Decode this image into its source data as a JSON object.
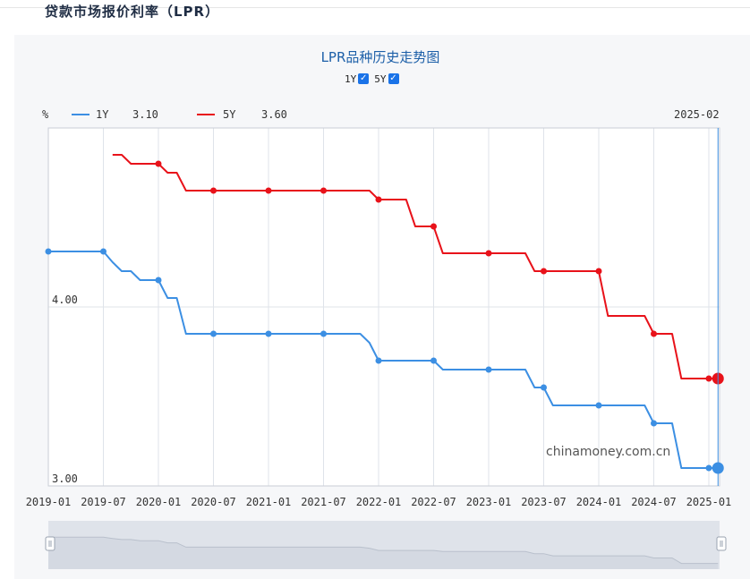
{
  "page": {
    "title": "贷款市场报价利率（LPR）"
  },
  "controls": {
    "toggles": [
      {
        "label": "1Y",
        "checked": true,
        "mark": "✓"
      },
      {
        "label": "5Y",
        "checked": true,
        "mark": "✓"
      }
    ]
  },
  "watermark": "chinamoney.com.cn",
  "colors": {
    "1Y": "#3c8fe3",
    "5Y": "#e8121a",
    "grid": "#dfe3ea",
    "navigator": "#d4d9e2"
  },
  "chart_data": {
    "type": "line",
    "title": "LPR品种历史走势图",
    "unit": "%",
    "cursor_label": "2025-02",
    "x_ticks": [
      "2019-01",
      "2019-07",
      "2020-01",
      "2020-07",
      "2021-01",
      "2021-07",
      "2022-01",
      "2022-07",
      "2023-01",
      "2023-07",
      "2024-01",
      "2024-07",
      "2025-01"
    ],
    "y_ticks": [
      {
        "value": 3.0,
        "label": "3.00"
      },
      {
        "value": 4.0,
        "label": "4.00"
      }
    ],
    "ylim": [
      3.0,
      5.0
    ],
    "legend_position": "top-left",
    "series": [
      {
        "name": "1Y",
        "current": "3.10",
        "points": [
          [
            "2019-01",
            4.31
          ],
          [
            "2019-02",
            4.31
          ],
          [
            "2019-03",
            4.31
          ],
          [
            "2019-04",
            4.31
          ],
          [
            "2019-05",
            4.31
          ],
          [
            "2019-06",
            4.31
          ],
          [
            "2019-07",
            4.31
          ],
          [
            "2019-08",
            4.25
          ],
          [
            "2019-09",
            4.2
          ],
          [
            "2019-10",
            4.2
          ],
          [
            "2019-11",
            4.15
          ],
          [
            "2019-12",
            4.15
          ],
          [
            "2020-01",
            4.15
          ],
          [
            "2020-02",
            4.05
          ],
          [
            "2020-03",
            4.05
          ],
          [
            "2020-04",
            3.85
          ],
          [
            "2020-05",
            3.85
          ],
          [
            "2020-06",
            3.85
          ],
          [
            "2020-07",
            3.85
          ],
          [
            "2020-08",
            3.85
          ],
          [
            "2020-09",
            3.85
          ],
          [
            "2020-10",
            3.85
          ],
          [
            "2020-11",
            3.85
          ],
          [
            "2020-12",
            3.85
          ],
          [
            "2021-01",
            3.85
          ],
          [
            "2021-02",
            3.85
          ],
          [
            "2021-03",
            3.85
          ],
          [
            "2021-04",
            3.85
          ],
          [
            "2021-05",
            3.85
          ],
          [
            "2021-06",
            3.85
          ],
          [
            "2021-07",
            3.85
          ],
          [
            "2021-08",
            3.85
          ],
          [
            "2021-09",
            3.85
          ],
          [
            "2021-10",
            3.85
          ],
          [
            "2021-11",
            3.85
          ],
          [
            "2021-12",
            3.8
          ],
          [
            "2022-01",
            3.7
          ],
          [
            "2022-02",
            3.7
          ],
          [
            "2022-03",
            3.7
          ],
          [
            "2022-04",
            3.7
          ],
          [
            "2022-05",
            3.7
          ],
          [
            "2022-06",
            3.7
          ],
          [
            "2022-07",
            3.7
          ],
          [
            "2022-08",
            3.65
          ],
          [
            "2022-09",
            3.65
          ],
          [
            "2022-10",
            3.65
          ],
          [
            "2022-11",
            3.65
          ],
          [
            "2022-12",
            3.65
          ],
          [
            "2023-01",
            3.65
          ],
          [
            "2023-02",
            3.65
          ],
          [
            "2023-03",
            3.65
          ],
          [
            "2023-04",
            3.65
          ],
          [
            "2023-05",
            3.65
          ],
          [
            "2023-06",
            3.55
          ],
          [
            "2023-07",
            3.55
          ],
          [
            "2023-08",
            3.45
          ],
          [
            "2023-09",
            3.45
          ],
          [
            "2023-10",
            3.45
          ],
          [
            "2023-11",
            3.45
          ],
          [
            "2023-12",
            3.45
          ],
          [
            "2024-01",
            3.45
          ],
          [
            "2024-02",
            3.45
          ],
          [
            "2024-03",
            3.45
          ],
          [
            "2024-04",
            3.45
          ],
          [
            "2024-05",
            3.45
          ],
          [
            "2024-06",
            3.45
          ],
          [
            "2024-07",
            3.35
          ],
          [
            "2024-08",
            3.35
          ],
          [
            "2024-09",
            3.35
          ],
          [
            "2024-10",
            3.1
          ],
          [
            "2024-11",
            3.1
          ],
          [
            "2024-12",
            3.1
          ],
          [
            "2025-01",
            3.1
          ],
          [
            "2025-02",
            3.1
          ]
        ]
      },
      {
        "name": "5Y",
        "current": "3.60",
        "points": [
          [
            "2019-08",
            4.85
          ],
          [
            "2019-09",
            4.85
          ],
          [
            "2019-10",
            4.8
          ],
          [
            "2019-11",
            4.8
          ],
          [
            "2019-12",
            4.8
          ],
          [
            "2020-01",
            4.8
          ],
          [
            "2020-02",
            4.75
          ],
          [
            "2020-03",
            4.75
          ],
          [
            "2020-04",
            4.65
          ],
          [
            "2020-05",
            4.65
          ],
          [
            "2020-06",
            4.65
          ],
          [
            "2020-07",
            4.65
          ],
          [
            "2020-08",
            4.65
          ],
          [
            "2020-09",
            4.65
          ],
          [
            "2020-10",
            4.65
          ],
          [
            "2020-11",
            4.65
          ],
          [
            "2020-12",
            4.65
          ],
          [
            "2021-01",
            4.65
          ],
          [
            "2021-02",
            4.65
          ],
          [
            "2021-03",
            4.65
          ],
          [
            "2021-04",
            4.65
          ],
          [
            "2021-05",
            4.65
          ],
          [
            "2021-06",
            4.65
          ],
          [
            "2021-07",
            4.65
          ],
          [
            "2021-08",
            4.65
          ],
          [
            "2021-09",
            4.65
          ],
          [
            "2021-10",
            4.65
          ],
          [
            "2021-11",
            4.65
          ],
          [
            "2021-12",
            4.65
          ],
          [
            "2022-01",
            4.6
          ],
          [
            "2022-02",
            4.6
          ],
          [
            "2022-03",
            4.6
          ],
          [
            "2022-04",
            4.6
          ],
          [
            "2022-05",
            4.45
          ],
          [
            "2022-06",
            4.45
          ],
          [
            "2022-07",
            4.45
          ],
          [
            "2022-08",
            4.3
          ],
          [
            "2022-09",
            4.3
          ],
          [
            "2022-10",
            4.3
          ],
          [
            "2022-11",
            4.3
          ],
          [
            "2022-12",
            4.3
          ],
          [
            "2023-01",
            4.3
          ],
          [
            "2023-02",
            4.3
          ],
          [
            "2023-03",
            4.3
          ],
          [
            "2023-04",
            4.3
          ],
          [
            "2023-05",
            4.3
          ],
          [
            "2023-06",
            4.2
          ],
          [
            "2023-07",
            4.2
          ],
          [
            "2023-08",
            4.2
          ],
          [
            "2023-09",
            4.2
          ],
          [
            "2023-10",
            4.2
          ],
          [
            "2023-11",
            4.2
          ],
          [
            "2023-12",
            4.2
          ],
          [
            "2024-01",
            4.2
          ],
          [
            "2024-02",
            3.95
          ],
          [
            "2024-03",
            3.95
          ],
          [
            "2024-04",
            3.95
          ],
          [
            "2024-05",
            3.95
          ],
          [
            "2024-06",
            3.95
          ],
          [
            "2024-07",
            3.85
          ],
          [
            "2024-08",
            3.85
          ],
          [
            "2024-09",
            3.85
          ],
          [
            "2024-10",
            3.6
          ],
          [
            "2024-11",
            3.6
          ],
          [
            "2024-12",
            3.6
          ],
          [
            "2025-01",
            3.6
          ],
          [
            "2025-02",
            3.6
          ]
        ]
      }
    ],
    "markers": {
      "1Y": [
        "2019-01",
        "2019-07",
        "2020-01",
        "2020-07",
        "2021-01",
        "2021-07",
        "2022-01",
        "2022-07",
        "2023-01",
        "2023-07",
        "2024-01",
        "2024-07",
        "2025-01"
      ],
      "5Y": [
        "2020-01",
        "2020-07",
        "2021-01",
        "2021-07",
        "2022-01",
        "2022-07",
        "2023-01",
        "2023-07",
        "2024-01",
        "2024-07",
        "2025-01"
      ]
    }
  }
}
